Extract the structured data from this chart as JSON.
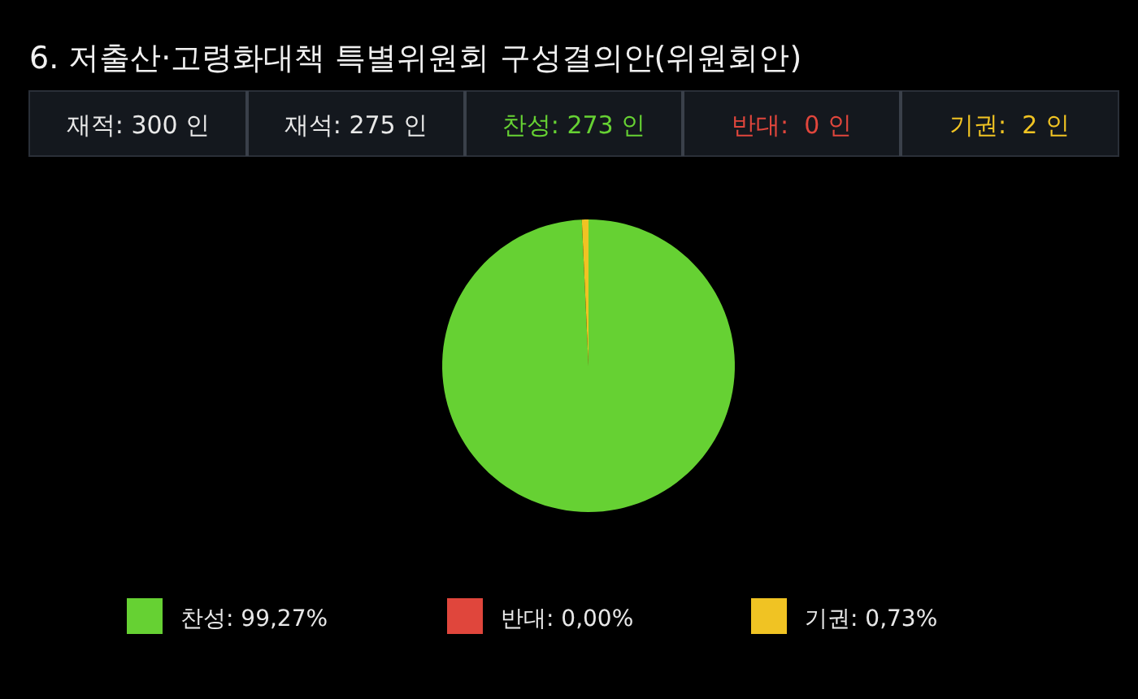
{
  "chart_data": {
    "type": "pie",
    "title": "6. 저출산·고령화대책 특별위원회 구성결의안(위원회안)",
    "annotations": [
      "재적: 300 인",
      "재석: 275 인",
      "찬성: 273 인",
      "반대:  0 인",
      "기권:  2 인"
    ],
    "categories": [
      "찬성",
      "반대",
      "기권"
    ],
    "values": [
      99.27,
      0.0,
      0.73
    ],
    "value_labels": [
      "99,27%",
      "0,00%",
      "0,73%"
    ],
    "colors": [
      "#66d133",
      "#e0463c",
      "#f0c323"
    ],
    "legend": "bottom"
  }
}
